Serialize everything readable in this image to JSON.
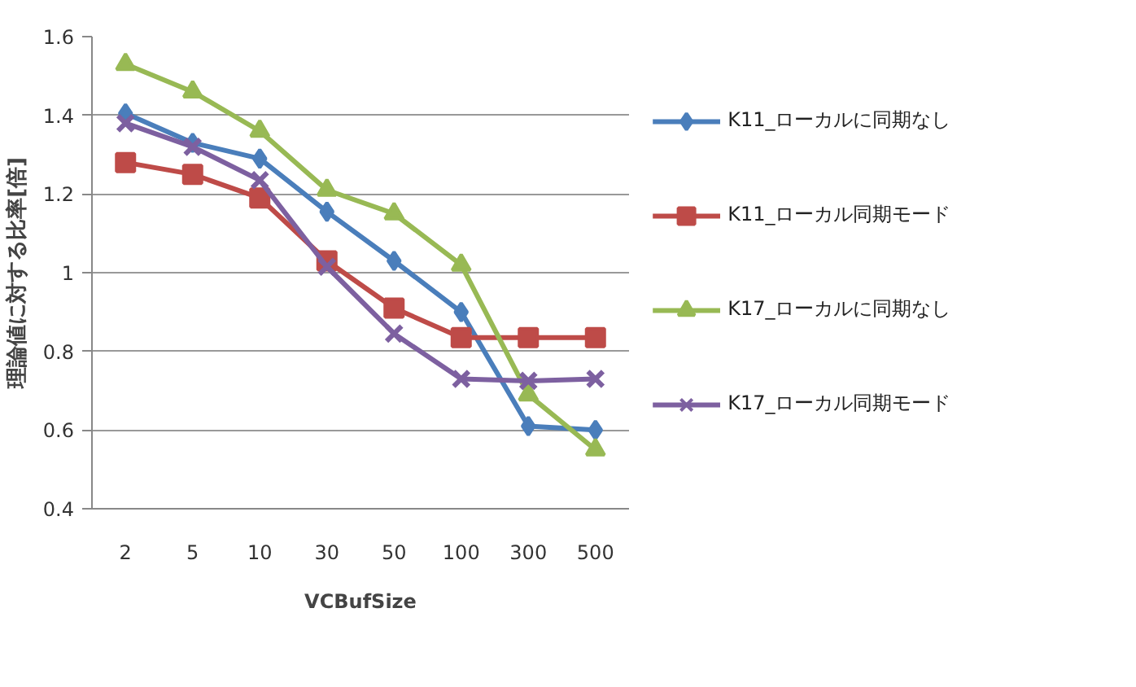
{
  "chart_data": {
    "type": "line",
    "xlabel": "VCBufSize",
    "ylabel": "理論値に対する比率[倍]",
    "categories": [
      "2",
      "5",
      "10",
      "30",
      "50",
      "100",
      "300",
      "500"
    ],
    "ylim": [
      0.4,
      1.6
    ],
    "yticks": [
      0.4,
      0.6,
      0.8,
      1,
      1.2,
      1.4,
      1.6
    ],
    "grid": "y",
    "legend": "right",
    "series": [
      {
        "name": "K11_ローカルに同期なし",
        "color": "#4a7ebb",
        "marker": "diamond",
        "values": [
          1.405,
          1.33,
          1.29,
          1.155,
          1.03,
          0.9,
          0.61,
          0.6
        ]
      },
      {
        "name": "K11_ローカル同期モード",
        "color": "#be4b48",
        "marker": "square",
        "values": [
          1.28,
          1.25,
          1.19,
          1.03,
          0.91,
          0.835,
          0.835,
          0.835
        ]
      },
      {
        "name": "K17_ローカルに同期なし",
        "color": "#98b954",
        "marker": "triangle",
        "values": [
          1.53,
          1.46,
          1.36,
          1.21,
          1.15,
          1.02,
          0.69,
          0.55
        ]
      },
      {
        "name": "K17_ローカル同期モード",
        "color": "#7d60a0",
        "marker": "x",
        "values": [
          1.38,
          1.32,
          1.235,
          1.015,
          0.845,
          0.73,
          0.725,
          0.73
        ]
      }
    ]
  }
}
